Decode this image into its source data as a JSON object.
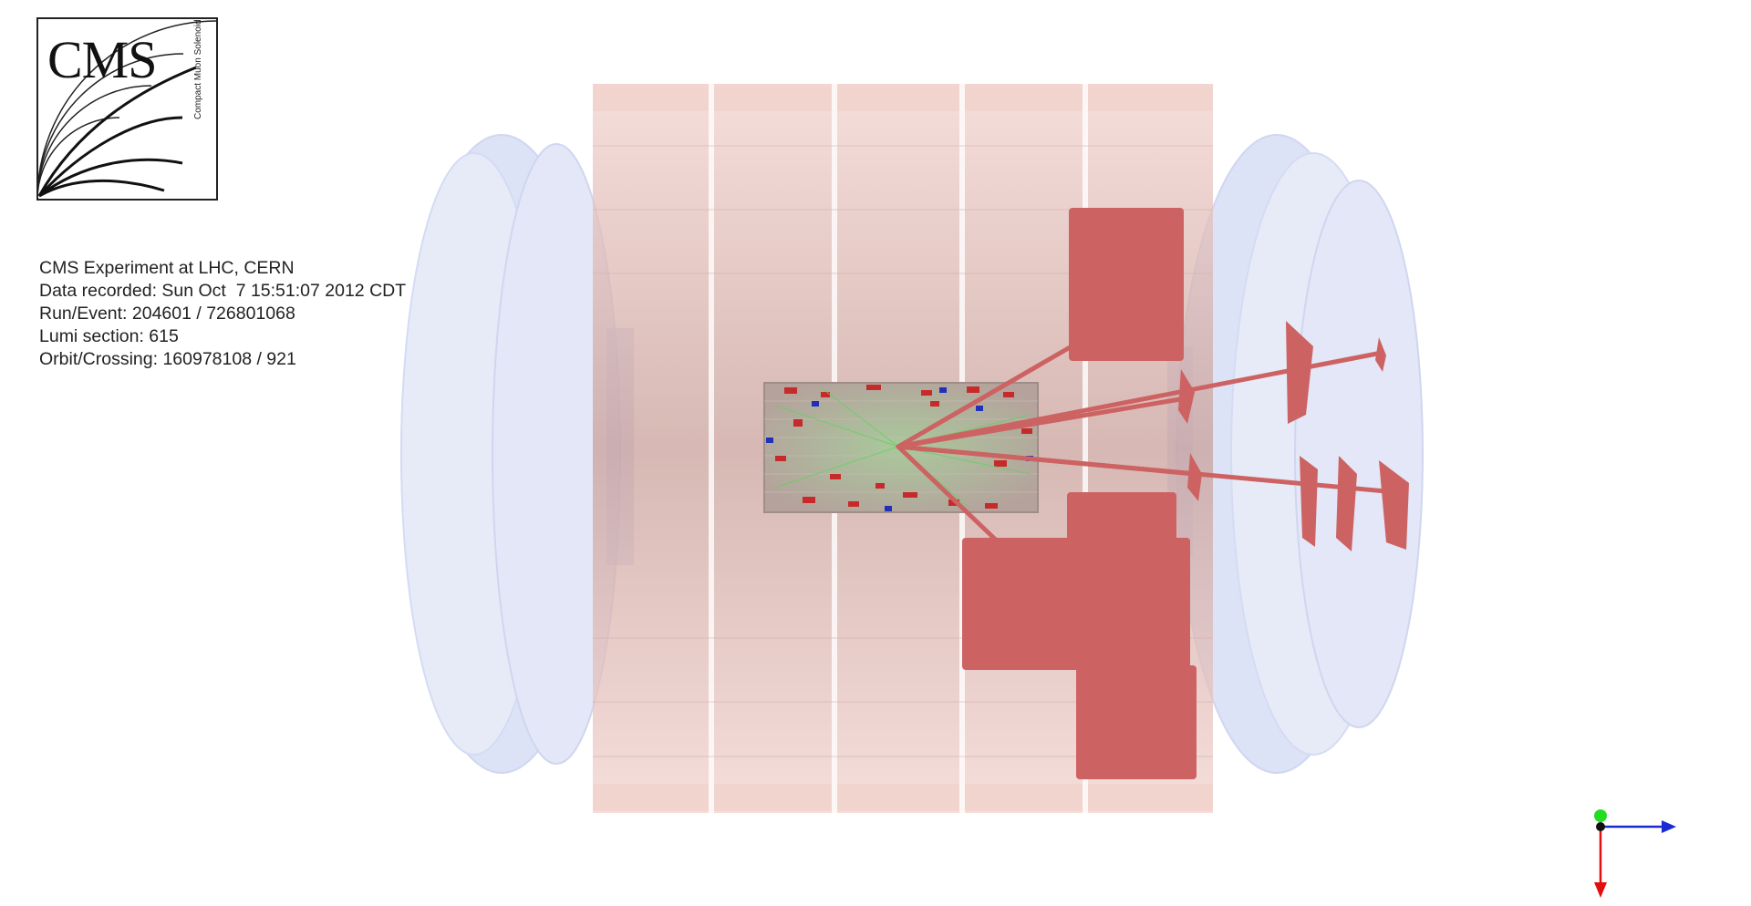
{
  "logo": {
    "text": "CMS",
    "subtitle": "Compact Muon Solenoid"
  },
  "event_info": {
    "line1": "CMS Experiment at LHC, CERN",
    "line2": "Data recorded: Sun Oct  7 15:51:07 2012 CDT",
    "line3": "Run/Event: 204601 / 726801068",
    "line4": "Lumi section: 615",
    "line5": "Orbit/Crossing: 160978108 / 921"
  },
  "colors": {
    "barrel": "#e8b8b0",
    "endcap": "#b8c4ea",
    "energy": "#cc5f5f",
    "tracker": "#9fc29a",
    "axis_x": "#1a2bd6",
    "axis_y": "#22dd22",
    "axis_z": "#e01010"
  }
}
